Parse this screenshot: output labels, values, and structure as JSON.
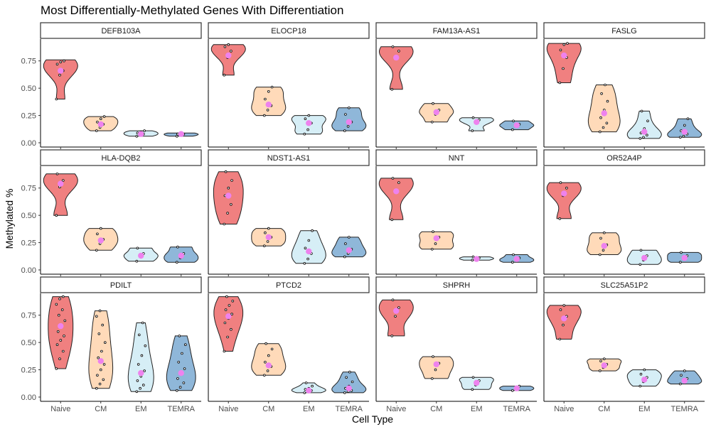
{
  "chart_data": {
    "type": "violin",
    "title": "Most Differentially-Methylated Genes With Differentiation",
    "xlabel": "Cell Type",
    "ylabel": "Methylated %",
    "categories": [
      "Naive",
      "CM",
      "EM",
      "TEMRA"
    ],
    "ylim": [
      0,
      0.95
    ],
    "yticks": [
      0.0,
      0.25,
      0.5,
      0.75
    ],
    "ytick_labels": [
      "0.00",
      "0.25",
      "0.50",
      "0.75"
    ],
    "grid": false,
    "facet_layout": "3 rows x 4 columns, free x axis",
    "mean_marker_color": "#ee82ee",
    "category_colors": {
      "Naive": "#f08080",
      "CM": "#ffdab9",
      "EM": "#d6eef6",
      "TEMRA": "#8fb7d9"
    },
    "panels": [
      {
        "gene": "DEFB103A",
        "groups": [
          {
            "category": "Naive",
            "min": 0.4,
            "max": 0.76,
            "mean": 0.66,
            "points": [
              0.4,
              0.62,
              0.66,
              0.72,
              0.74,
              0.75
            ]
          },
          {
            "category": "CM",
            "min": 0.11,
            "max": 0.24,
            "mean": 0.17,
            "points": [
              0.11,
              0.14,
              0.17,
              0.19,
              0.22,
              0.24
            ]
          },
          {
            "category": "EM",
            "min": 0.06,
            "max": 0.11,
            "mean": 0.08,
            "points": [
              0.06,
              0.07,
              0.08,
              0.09,
              0.1,
              0.11
            ]
          },
          {
            "category": "TEMRA",
            "min": 0.06,
            "max": 0.09,
            "mean": 0.08,
            "points": [
              0.06,
              0.07,
              0.08,
              0.08,
              0.09
            ]
          }
        ]
      },
      {
        "gene": "ELOCP18",
        "groups": [
          {
            "category": "Naive",
            "min": 0.62,
            "max": 0.9,
            "mean": 0.8,
            "points": [
              0.62,
              0.78,
              0.84,
              0.88,
              0.9
            ]
          },
          {
            "category": "CM",
            "min": 0.25,
            "max": 0.51,
            "mean": 0.35,
            "points": [
              0.25,
              0.3,
              0.34,
              0.4,
              0.47,
              0.51
            ]
          },
          {
            "category": "EM",
            "min": 0.08,
            "max": 0.25,
            "mean": 0.18,
            "points": [
              0.08,
              0.12,
              0.18,
              0.22,
              0.25
            ]
          },
          {
            "category": "TEMRA",
            "min": 0.11,
            "max": 0.32,
            "mean": 0.19,
            "points": [
              0.11,
              0.15,
              0.19,
              0.26,
              0.32
            ]
          }
        ]
      },
      {
        "gene": "FAM13A-AS1",
        "groups": [
          {
            "category": "Naive",
            "min": 0.49,
            "max": 0.88,
            "mean": 0.78,
            "points": [
              0.49,
              0.78,
              0.84,
              0.88
            ]
          },
          {
            "category": "CM",
            "min": 0.19,
            "max": 0.36,
            "mean": 0.28,
            "points": [
              0.19,
              0.26,
              0.3,
              0.36
            ]
          },
          {
            "category": "EM",
            "min": 0.11,
            "max": 0.23,
            "mean": 0.19,
            "points": [
              0.11,
              0.18,
              0.21,
              0.23
            ]
          },
          {
            "category": "TEMRA",
            "min": 0.12,
            "max": 0.2,
            "mean": 0.16,
            "points": [
              0.12,
              0.15,
              0.17,
              0.2
            ]
          }
        ]
      },
      {
        "gene": "FASLG",
        "groups": [
          {
            "category": "Naive",
            "min": 0.55,
            "max": 0.91,
            "mean": 0.8,
            "points": [
              0.55,
              0.68,
              0.78,
              0.85,
              0.9,
              0.91
            ]
          },
          {
            "category": "CM",
            "min": 0.1,
            "max": 0.53,
            "mean": 0.27,
            "points": [
              0.1,
              0.14,
              0.18,
              0.23,
              0.3,
              0.38,
              0.45,
              0.53
            ]
          },
          {
            "category": "EM",
            "min": 0.04,
            "max": 0.29,
            "mean": 0.1,
            "points": [
              0.04,
              0.05,
              0.07,
              0.09,
              0.13,
              0.2,
              0.29
            ]
          },
          {
            "category": "TEMRA",
            "min": 0.05,
            "max": 0.22,
            "mean": 0.1,
            "points": [
              0.05,
              0.06,
              0.08,
              0.11,
              0.16,
              0.22
            ]
          }
        ]
      },
      {
        "gene": "HLA-DQB2",
        "groups": [
          {
            "category": "Naive",
            "min": 0.5,
            "max": 0.88,
            "mean": 0.79,
            "points": [
              0.5,
              0.76,
              0.82,
              0.88
            ]
          },
          {
            "category": "CM",
            "min": 0.18,
            "max": 0.38,
            "mean": 0.27,
            "points": [
              0.18,
              0.24,
              0.28,
              0.33,
              0.38
            ]
          },
          {
            "category": "EM",
            "min": 0.08,
            "max": 0.2,
            "mean": 0.13,
            "points": [
              0.08,
              0.12,
              0.15,
              0.2
            ]
          },
          {
            "category": "TEMRA",
            "min": 0.07,
            "max": 0.21,
            "mean": 0.13,
            "points": [
              0.07,
              0.11,
              0.15,
              0.21
            ]
          }
        ]
      },
      {
        "gene": "NDST1-AS1",
        "groups": [
          {
            "category": "Naive",
            "min": 0.42,
            "max": 0.9,
            "mean": 0.68,
            "points": [
              0.42,
              0.52,
              0.6,
              0.68,
              0.75,
              0.82,
              0.9
            ]
          },
          {
            "category": "CM",
            "min": 0.22,
            "max": 0.38,
            "mean": 0.3,
            "points": [
              0.22,
              0.26,
              0.3,
              0.34,
              0.38
            ]
          },
          {
            "category": "EM",
            "min": 0.06,
            "max": 0.36,
            "mean": 0.17,
            "points": [
              0.06,
              0.1,
              0.15,
              0.2,
              0.27,
              0.36
            ]
          },
          {
            "category": "TEMRA",
            "min": 0.12,
            "max": 0.3,
            "mean": 0.18,
            "points": [
              0.12,
              0.15,
              0.19,
              0.24,
              0.3
            ]
          }
        ]
      },
      {
        "gene": "NNT",
        "groups": [
          {
            "category": "Naive",
            "min": 0.46,
            "max": 0.84,
            "mean": 0.72,
            "points": [
              0.46,
              0.72,
              0.8,
              0.84
            ]
          },
          {
            "category": "CM",
            "min": 0.19,
            "max": 0.35,
            "mean": 0.29,
            "points": [
              0.19,
              0.24,
              0.3,
              0.35
            ]
          },
          {
            "category": "EM",
            "min": 0.09,
            "max": 0.12,
            "mean": 0.1,
            "points": [
              0.09,
              0.1,
              0.11,
              0.12
            ]
          },
          {
            "category": "TEMRA",
            "min": 0.07,
            "max": 0.14,
            "mean": 0.1,
            "points": [
              0.07,
              0.09,
              0.11,
              0.14
            ]
          }
        ]
      },
      {
        "gene": "OR52A4P",
        "groups": [
          {
            "category": "Naive",
            "min": 0.47,
            "max": 0.8,
            "mean": 0.7,
            "points": [
              0.47,
              0.68,
              0.75,
              0.8
            ]
          },
          {
            "category": "CM",
            "min": 0.14,
            "max": 0.34,
            "mean": 0.22,
            "points": [
              0.14,
              0.18,
              0.23,
              0.29,
              0.34
            ]
          },
          {
            "category": "EM",
            "min": 0.05,
            "max": 0.18,
            "mean": 0.11,
            "points": [
              0.05,
              0.09,
              0.13,
              0.18
            ]
          },
          {
            "category": "TEMRA",
            "min": 0.07,
            "max": 0.16,
            "mean": 0.11,
            "points": [
              0.07,
              0.1,
              0.13,
              0.16
            ]
          }
        ]
      },
      {
        "gene": "PDILT",
        "groups": [
          {
            "category": "Naive",
            "min": 0.26,
            "max": 0.92,
            "mean": 0.65,
            "points": [
              0.26,
              0.35,
              0.42,
              0.48,
              0.52,
              0.56,
              0.6,
              0.65,
              0.7,
              0.75,
              0.8,
              0.85,
              0.9,
              0.92
            ]
          },
          {
            "category": "CM",
            "min": 0.08,
            "max": 0.79,
            "mean": 0.33,
            "points": [
              0.08,
              0.12,
              0.16,
              0.2,
              0.25,
              0.3,
              0.36,
              0.42,
              0.5,
              0.58,
              0.66,
              0.74,
              0.79
            ]
          },
          {
            "category": "EM",
            "min": 0.05,
            "max": 0.68,
            "mean": 0.22,
            "points": [
              0.05,
              0.08,
              0.11,
              0.15,
              0.19,
              0.24,
              0.3,
              0.38,
              0.47,
              0.57,
              0.68
            ]
          },
          {
            "category": "TEMRA",
            "min": 0.06,
            "max": 0.56,
            "mean": 0.22,
            "points": [
              0.06,
              0.09,
              0.13,
              0.17,
              0.21,
              0.26,
              0.32,
              0.4,
              0.48,
              0.56
            ]
          }
        ]
      },
      {
        "gene": "PTCD2",
        "groups": [
          {
            "category": "Naive",
            "min": 0.42,
            "max": 0.92,
            "mean": 0.74,
            "points": [
              0.42,
              0.55,
              0.62,
              0.68,
              0.72,
              0.76,
              0.8,
              0.84,
              0.88,
              0.92
            ]
          },
          {
            "category": "CM",
            "min": 0.2,
            "max": 0.49,
            "mean": 0.29,
            "points": [
              0.2,
              0.24,
              0.28,
              0.32,
              0.38,
              0.44,
              0.49
            ]
          },
          {
            "category": "EM",
            "min": 0.04,
            "max": 0.13,
            "mean": 0.06,
            "points": [
              0.04,
              0.05,
              0.06,
              0.07,
              0.08,
              0.1,
              0.13
            ]
          },
          {
            "category": "TEMRA",
            "min": 0.04,
            "max": 0.23,
            "mean": 0.08,
            "points": [
              0.04,
              0.05,
              0.06,
              0.08,
              0.1,
              0.14,
              0.18,
              0.23
            ]
          }
        ]
      },
      {
        "gene": "SHPRH",
        "groups": [
          {
            "category": "Naive",
            "min": 0.56,
            "max": 0.89,
            "mean": 0.79,
            "points": [
              0.56,
              0.74,
              0.82,
              0.89
            ]
          },
          {
            "category": "CM",
            "min": 0.17,
            "max": 0.37,
            "mean": 0.3,
            "points": [
              0.17,
              0.25,
              0.31,
              0.37
            ]
          },
          {
            "category": "EM",
            "min": 0.07,
            "max": 0.18,
            "mean": 0.13,
            "points": [
              0.07,
              0.11,
              0.15,
              0.18
            ]
          },
          {
            "category": "TEMRA",
            "min": 0.06,
            "max": 0.1,
            "mean": 0.08,
            "points": [
              0.06,
              0.08,
              0.1
            ]
          }
        ]
      },
      {
        "gene": "SLC25A51P2",
        "groups": [
          {
            "category": "Naive",
            "min": 0.53,
            "max": 0.84,
            "mean": 0.72,
            "points": [
              0.53,
              0.66,
              0.74,
              0.8,
              0.84
            ]
          },
          {
            "category": "CM",
            "min": 0.24,
            "max": 0.35,
            "mean": 0.29,
            "points": [
              0.24,
              0.27,
              0.3,
              0.33,
              0.35
            ]
          },
          {
            "category": "EM",
            "min": 0.1,
            "max": 0.25,
            "mean": 0.16,
            "points": [
              0.1,
              0.14,
              0.18,
              0.21,
              0.25
            ]
          },
          {
            "category": "TEMRA",
            "min": 0.12,
            "max": 0.24,
            "mean": 0.15,
            "points": [
              0.12,
              0.14,
              0.17,
              0.2,
              0.24
            ]
          }
        ]
      }
    ]
  }
}
